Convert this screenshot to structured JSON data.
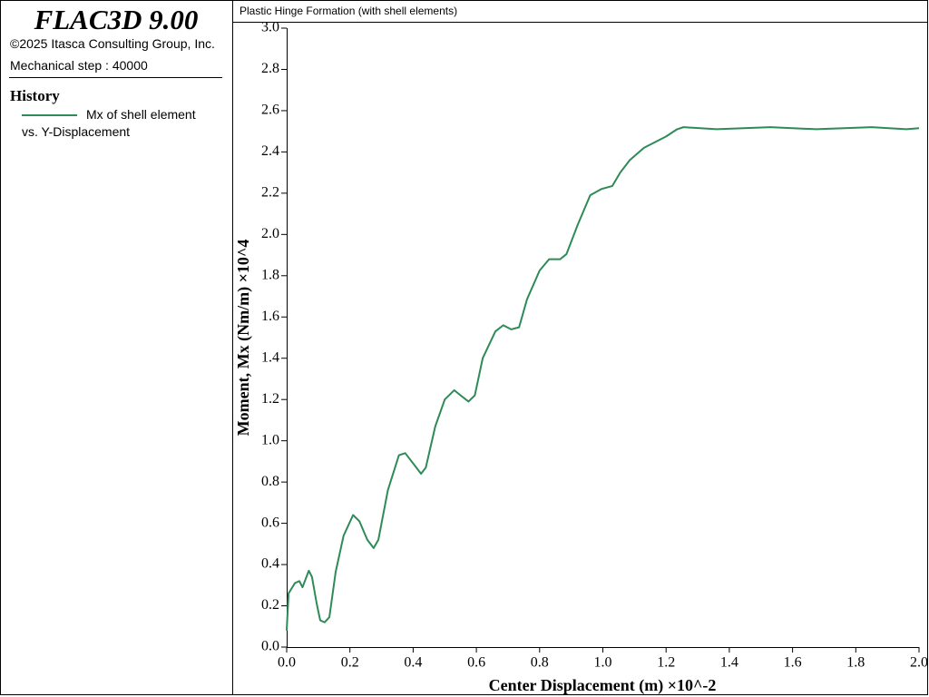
{
  "panel": {
    "title": "FLAC3D 9.00",
    "copyright": "©2025 Itasca Consulting Group, Inc.",
    "step": "Mechanical step : 40000",
    "section": "History"
  },
  "chart_data": {
    "type": "line",
    "title": "Plastic Hinge Formation (with shell elements)",
    "xlabel": "Center Displacement (m) ×10^-2",
    "ylabel": "Moment, Mx (Nm/m) ×10^4",
    "x": [
      0.0,
      0.006,
      0.026,
      0.04,
      0.05,
      0.07,
      0.08,
      0.095,
      0.106,
      0.12,
      0.135,
      0.155,
      0.18,
      0.21,
      0.23,
      0.255,
      0.275,
      0.29,
      0.32,
      0.355,
      0.375,
      0.4,
      0.425,
      0.44,
      0.47,
      0.5,
      0.53,
      0.55,
      0.575,
      0.595,
      0.62,
      0.66,
      0.685,
      0.71,
      0.735,
      0.76,
      0.8,
      0.83,
      0.865,
      0.885,
      0.92,
      0.96,
      0.995,
      1.03,
      1.055,
      1.085,
      1.13,
      1.2,
      1.235,
      1.255,
      1.36,
      1.53,
      1.675,
      1.85,
      1.96,
      2.0
    ],
    "series": [
      {
        "name": "Mx of shell element vs. Y-Displacement",
        "color": "#2e8b57",
        "values": [
          0.08,
          0.26,
          0.31,
          0.32,
          0.29,
          0.37,
          0.34,
          0.21,
          0.13,
          0.12,
          0.145,
          0.365,
          0.54,
          0.64,
          0.61,
          0.52,
          0.48,
          0.52,
          0.76,
          0.93,
          0.94,
          0.89,
          0.84,
          0.87,
          1.07,
          1.2,
          1.245,
          1.22,
          1.19,
          1.22,
          1.4,
          1.53,
          1.56,
          1.54,
          1.55,
          1.685,
          1.825,
          1.88,
          1.88,
          1.905,
          2.045,
          2.19,
          2.22,
          2.235,
          2.3,
          2.36,
          2.42,
          2.475,
          2.51,
          2.52,
          2.51,
          2.52,
          2.51,
          2.52,
          2.51,
          2.515
        ]
      }
    ],
    "xlim": [
      0,
      2
    ],
    "xticks": [
      {
        "value": 0,
        "label": "0.0"
      },
      0.2,
      0.4,
      0.6,
      0.8,
      {
        "value": 1,
        "label": "1.0"
      },
      1.2,
      1.4,
      1.6,
      1.8,
      {
        "value": 2,
        "label": "2.0"
      }
    ],
    "ylim": [
      0,
      3
    ],
    "yticks": [
      {
        "value": 0,
        "label": "0.0"
      },
      0.2,
      0.4,
      0.6,
      0.8,
      {
        "value": 1,
        "label": "1.0"
      },
      1.2,
      1.4,
      1.6,
      1.8,
      {
        "value": 2,
        "label": "2.0"
      },
      2.2,
      2.4,
      2.6,
      2.8,
      {
        "value": 3,
        "label": "3.0"
      }
    ]
  }
}
